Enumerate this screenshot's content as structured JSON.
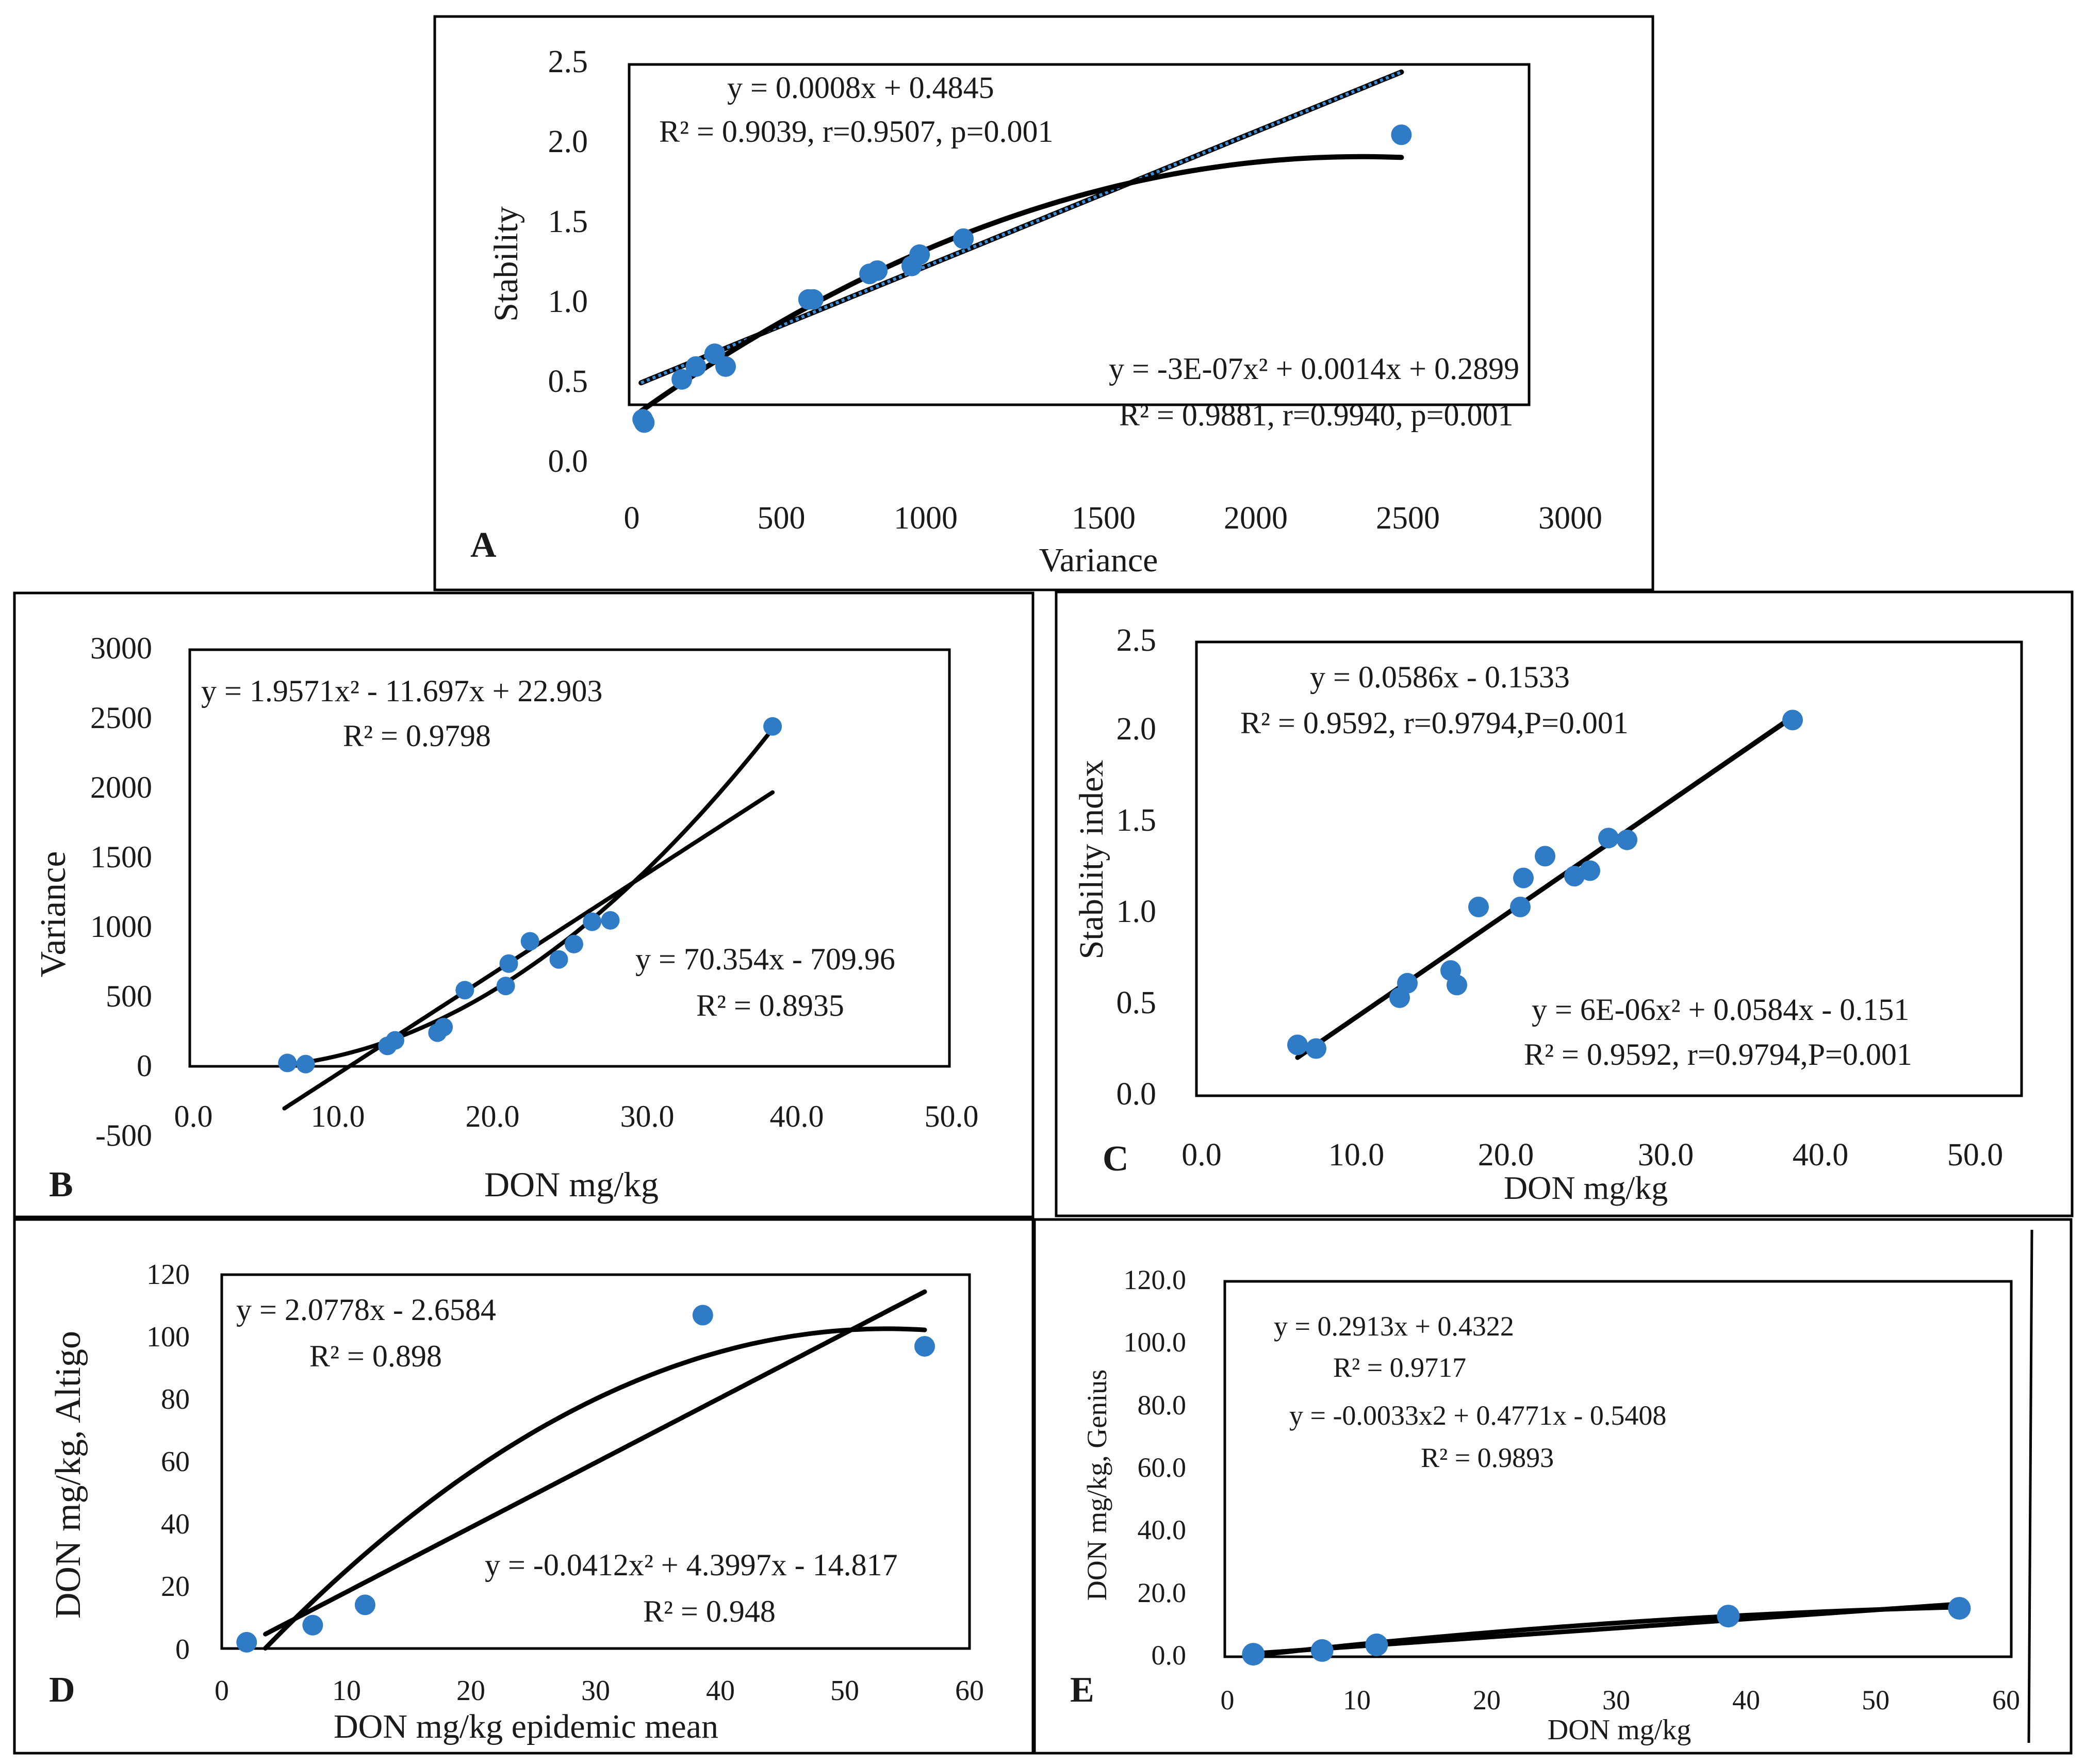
{
  "colors": {
    "point": "#2f7bc6",
    "line": "#000000",
    "frame": "#000000",
    "dotted": "#3a8fd8"
  },
  "chart_data": [
    {
      "id": "A",
      "type": "scatter",
      "panel_label": "A",
      "xlabel": "Variance",
      "ylabel": "Stability",
      "xlim": [
        0,
        3000
      ],
      "ylim": [
        0,
        2.5
      ],
      "xticks": [
        "0",
        "500",
        "1000",
        "1500",
        "2000",
        "2500",
        "3000"
      ],
      "yticks": [
        "0.0",
        "0.5",
        "1.0",
        "1.5",
        "2.0",
        "2.5"
      ],
      "points": [
        [
          35,
          0.28
        ],
        [
          40,
          0.26
        ],
        [
          160,
          0.53
        ],
        [
          205,
          0.61
        ],
        [
          265,
          0.69
        ],
        [
          300,
          0.61
        ],
        [
          565,
          1.03
        ],
        [
          580,
          1.03
        ],
        [
          760,
          1.19
        ],
        [
          785,
          1.21
        ],
        [
          895,
          1.24
        ],
        [
          920,
          1.31
        ],
        [
          1060,
          1.41
        ],
        [
          2460,
          2.06
        ]
      ],
      "fits": [
        {
          "kind": "linear",
          "style": "dotted",
          "coef": [
            0.4845,
            0.0008
          ],
          "xrange": [
            30,
            2460
          ],
          "equation": "y = 0.0008x + 0.4845",
          "r2": "R² = 0.9039, r=0.9507, p=0.001"
        },
        {
          "kind": "poly2",
          "style": "solid",
          "coef": [
            0.2899,
            0.0014,
            -3e-07
          ],
          "xrange": [
            30,
            2460
          ],
          "equation": "y = -3E-07x² + 0.0014x + 0.2899",
          "r2": "R² = 0.9881, r=0.9940, p=0.001"
        }
      ]
    },
    {
      "id": "B",
      "type": "scatter",
      "panel_label": "B",
      "xlabel": "DON mg/kg",
      "ylabel": "Variance",
      "xlim": [
        0,
        50
      ],
      "ylim": [
        -500,
        3000
      ],
      "xticks": [
        "0.0",
        "10.0",
        "20.0",
        "30.0",
        "40.0",
        "50.0"
      ],
      "yticks": [
        "-500",
        "0",
        "500",
        "1000",
        "1500",
        "2000",
        "2500",
        "3000"
      ],
      "points": [
        [
          6.2,
          38
        ],
        [
          7.4,
          30
        ],
        [
          12.8,
          160
        ],
        [
          13.3,
          200
        ],
        [
          16.1,
          255
        ],
        [
          16.5,
          295
        ],
        [
          17.9,
          560
        ],
        [
          20.6,
          590
        ],
        [
          20.8,
          750
        ],
        [
          22.2,
          910
        ],
        [
          24.1,
          780
        ],
        [
          25.1,
          890
        ],
        [
          26.3,
          1050
        ],
        [
          27.5,
          1060
        ],
        [
          38.2,
          2450
        ]
      ],
      "fits": [
        {
          "kind": "linear",
          "style": "solid",
          "coef": [
            -709.96,
            70.354
          ],
          "xrange": [
            6.0,
            38.2
          ],
          "equation": "y = 70.354x - 709.96",
          "r2": "R² = 0.8935"
        },
        {
          "kind": "poly2",
          "style": "solid",
          "coef": [
            22.903,
            -11.697,
            1.9571
          ],
          "xrange": [
            6.0,
            38.2
          ],
          "equation": "y = 1.9571x² - 11.697x + 22.903",
          "r2": "R² = 0.9798"
        }
      ]
    },
    {
      "id": "C",
      "type": "scatter",
      "panel_label": "C",
      "xlabel": "DON mg/kg",
      "ylabel": "Stability index",
      "xlim": [
        0,
        50
      ],
      "ylim": [
        0,
        2.5
      ],
      "xticks": [
        "0.0",
        "10.0",
        "20.0",
        "30.0",
        "40.0",
        "50.0"
      ],
      "yticks": [
        "0.0",
        "0.5",
        "1.0",
        "1.5",
        "2.0",
        "2.5"
      ],
      "points": [
        [
          6.2,
          0.28
        ],
        [
          7.4,
          0.26
        ],
        [
          12.8,
          0.54
        ],
        [
          13.3,
          0.62
        ],
        [
          16.1,
          0.69
        ],
        [
          16.5,
          0.61
        ],
        [
          17.9,
          1.04
        ],
        [
          20.6,
          1.04
        ],
        [
          20.8,
          1.2
        ],
        [
          22.2,
          1.32
        ],
        [
          24.1,
          1.21
        ],
        [
          25.1,
          1.24
        ],
        [
          26.3,
          1.42
        ],
        [
          27.5,
          1.41
        ],
        [
          38.2,
          2.07
        ]
      ],
      "fits": [
        {
          "kind": "linear",
          "style": "dotted",
          "coef": [
            -0.1533,
            0.0586
          ],
          "xrange": [
            6.2,
            38.2
          ],
          "equation": "y = 0.0586x - 0.1533",
          "r2": "R² = 0.9592, r=0.9794,P=0.001"
        },
        {
          "kind": "poly2",
          "style": "solid",
          "coef": [
            -0.151,
            0.0584,
            6e-06
          ],
          "xrange": [
            6.2,
            38.2
          ],
          "equation": "y = 6E-06x² + 0.0584x - 0.151",
          "r2": "R² = 0.9592, r=0.9794,P=0.001"
        }
      ]
    },
    {
      "id": "D",
      "type": "scatter",
      "panel_label": "D",
      "xlabel": "DON mg/kg epidemic mean",
      "ylabel": "DON mg/kg, Altigo",
      "xlim": [
        0,
        60
      ],
      "ylim": [
        0,
        120
      ],
      "xticks": [
        "0",
        "10",
        "20",
        "30",
        "40",
        "50",
        "60"
      ],
      "yticks": [
        "0",
        "20",
        "40",
        "60",
        "80",
        "100",
        "120"
      ],
      "points": [
        [
          2.0,
          2.0
        ],
        [
          7.3,
          7.5
        ],
        [
          11.5,
          14.0
        ],
        [
          38.6,
          107.0
        ],
        [
          56.4,
          97.0
        ]
      ],
      "fits": [
        {
          "kind": "linear",
          "style": "solid",
          "coef": [
            -2.6584,
            2.0778
          ],
          "xrange": [
            3.5,
            56.4
          ],
          "equation": "y = 2.0778x - 2.6584",
          "r2": "R² = 0.898"
        },
        {
          "kind": "poly2",
          "style": "solid",
          "coef": [
            -14.817,
            4.3997,
            -0.0412
          ],
          "xrange": [
            3.5,
            56.4
          ],
          "equation": "y = -0.0412x² + 4.3997x - 14.817",
          "r2": "R² = 0.948"
        }
      ]
    },
    {
      "id": "E",
      "type": "scatter",
      "panel_label": "E",
      "xlabel": "DON mg/kg",
      "ylabel": "DON mg/kg, Genius",
      "xlim": [
        0,
        60
      ],
      "ylim": [
        0,
        120
      ],
      "xticks": [
        "0",
        "10",
        "20",
        "30",
        "40",
        "50",
        "60"
      ],
      "yticks": [
        "0.0",
        "20.0",
        "40.0",
        "60.0",
        "80.0",
        "100.0",
        "120.0"
      ],
      "points": [
        [
          2.0,
          0.8
        ],
        [
          7.3,
          2.0
        ],
        [
          11.5,
          3.8
        ],
        [
          38.6,
          13.0
        ],
        [
          56.4,
          15.5
        ]
      ],
      "fits": [
        {
          "kind": "linear",
          "style": "solid",
          "coef": [
            0.4322,
            0.2913
          ],
          "xrange": [
            2.0,
            56.4
          ],
          "equation": "y = 0.2913x + 0.4322",
          "r2": "R² = 0.9717"
        },
        {
          "kind": "poly2",
          "style": "solid",
          "coef": [
            -0.5408,
            0.4771,
            -0.0033
          ],
          "xrange": [
            2.0,
            56.4
          ],
          "equation": "y = -0.0033x2 + 0.4771x - 0.5408",
          "r2": "R² = 0.9893"
        }
      ]
    }
  ]
}
